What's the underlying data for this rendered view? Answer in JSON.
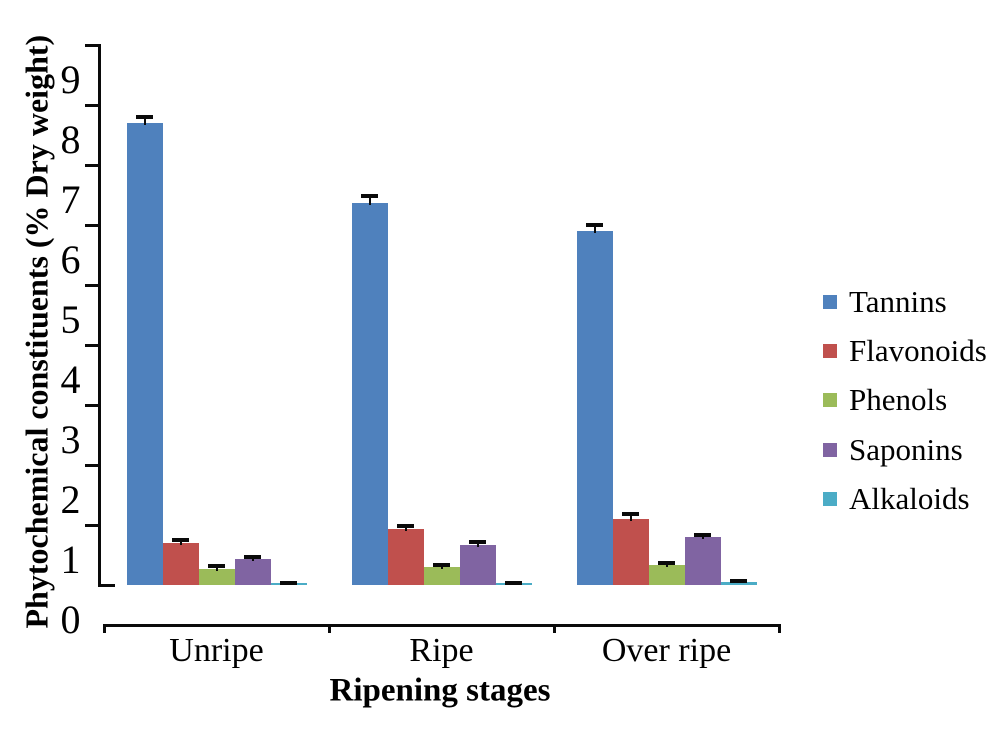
{
  "figure": {
    "background": "#ffffff",
    "text_color": "#000000",
    "axis_color": "#0a0a0a"
  },
  "chart_data": {
    "type": "bar",
    "title": "",
    "xlabel": "Ripening stages",
    "ylabel": "Phytochemical constituents (% Dry weight)",
    "categories": [
      "Unripe",
      "Ripe",
      "Over ripe"
    ],
    "series": [
      {
        "name": "Tannins",
        "color": "#4F81BD",
        "values": [
          7.7,
          6.37,
          5.9
        ],
        "errors": [
          0.1,
          0.12,
          0.1
        ]
      },
      {
        "name": "Flavonoids",
        "color": "#C0504D",
        "values": [
          0.7,
          0.93,
          1.1
        ],
        "errors": [
          0.05,
          0.06,
          0.09
        ]
      },
      {
        "name": "Phenols",
        "color": "#9BBB59",
        "values": [
          0.27,
          0.3,
          0.33
        ],
        "errors": [
          0.05,
          0.04,
          0.04
        ]
      },
      {
        "name": "Saponins",
        "color": "#8064A2",
        "values": [
          0.43,
          0.67,
          0.8
        ],
        "errors": [
          0.04,
          0.04,
          0.04
        ]
      },
      {
        "name": "Alkaloids",
        "color": "#4BACC6",
        "values": [
          0.03,
          0.02,
          0.05
        ],
        "errors": [
          0.01,
          0.01,
          0.02
        ]
      }
    ],
    "y_ticks": [
      "0",
      "1",
      "2",
      "3",
      "4",
      "5",
      "6",
      "7",
      "8",
      "9"
    ],
    "ylim": [
      0,
      9
    ],
    "grid": false,
    "legend_position": "right",
    "error_bars": true,
    "bar_error_color": "#0a0a0a"
  }
}
